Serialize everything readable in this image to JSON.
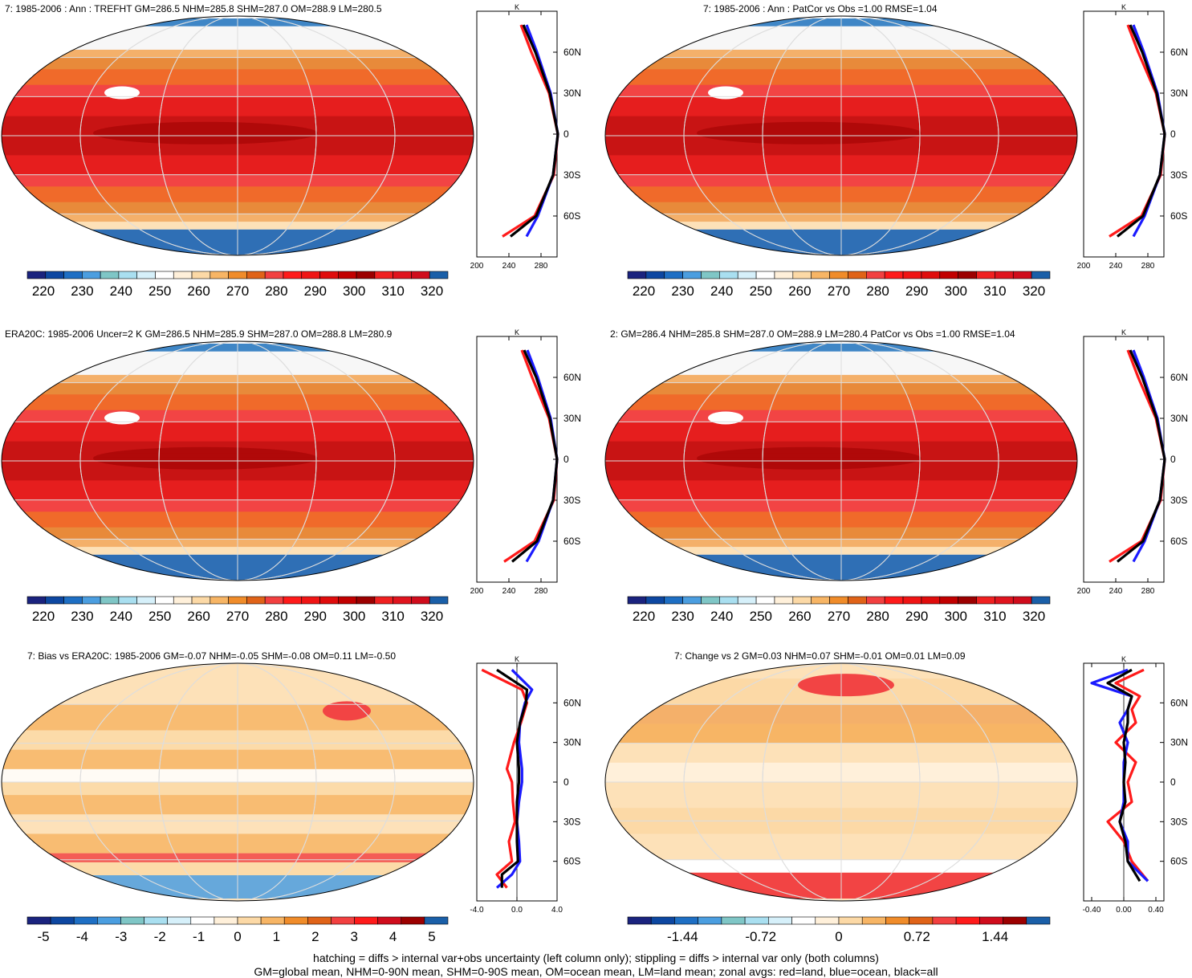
{
  "panels": [
    {
      "title": "7: 1985-2006 : Ann : TREFHT GM=286.5 NHM=285.8 SHM=287.0 OM=288.9 LM=280.5",
      "scale": "abs",
      "side": "left"
    },
    {
      "title": "7: 1985-2006 : Ann : PatCor vs Obs =1.00 RMSE=1.04",
      "scale": "abs",
      "side": "right"
    },
    {
      "title": "ERA20C: 1985-2006 Uncer=2 K GM=286.5 NHM=285.9 SHM=287.0 OM=288.8 LM=280.9",
      "scale": "abs",
      "side": "left"
    },
    {
      "title": "2: GM=286.4 NHM=285.8 SHM=287.0 OM=288.9 LM=280.4 PatCor vs Obs =1.00 RMSE=1.04",
      "scale": "abs",
      "side": "right"
    },
    {
      "title": "7: Bias vs ERA20C: 1985-2006 GM=-0.07 NHM=-0.05 SHM=-0.08 OM=0.11 LM=-0.50",
      "scale": "bias",
      "side": "left"
    },
    {
      "title": "7: Change vs 2 GM=0.03 NHM=0.07 SHM=-0.01 OM=0.01 LM=0.09",
      "scale": "change",
      "side": "right"
    }
  ],
  "colorbars": {
    "abs": {
      "labels": [
        "220",
        "230",
        "240",
        "250",
        "260",
        "270",
        "280",
        "290",
        "300",
        "310",
        "320"
      ]
    },
    "bias": {
      "labels": [
        "-5",
        "-4",
        "-3",
        "-2",
        "-1",
        "0",
        "1",
        "2",
        "3",
        "4",
        "5"
      ]
    },
    "change": {
      "labels": [
        "-1.44",
        "-0.72",
        "0",
        "0.72",
        "1.44"
      ]
    }
  },
  "zonal_axes": {
    "unit_label": "K",
    "lat_labels": [
      "60N",
      "30N",
      "0",
      "30S",
      "60S"
    ],
    "x_ticks_abs": [
      "200",
      "240",
      "280"
    ],
    "x_ticks_abs_right": [
      "200",
      "240",
      "280"
    ],
    "x_ticks_bias": [
      "-4.0",
      "0.0",
      "4.0"
    ],
    "x_ticks_change": [
      "-0.40",
      "0.00",
      "0.40"
    ]
  },
  "colors": {
    "land": "#ff1a1a",
    "ocean": "#1a1aff",
    "all": "#000000",
    "abs_palette": [
      "#1a237e",
      "#0d47a1",
      "#1e6fc4",
      "#4b9ee0",
      "#7fc6c6",
      "#a9dff0",
      "#d6f0fa",
      "#ffffff",
      "#fff0da",
      "#fcd9a6",
      "#f7b565",
      "#f08c2a",
      "#e06318",
      "#f24040",
      "#ff1a1a",
      "#f01414",
      "#e00c0c",
      "#c20000",
      "#9c0000",
      "#f02020",
      "#e0141e",
      "#d00c1c",
      "#1a5fa8"
    ],
    "diff_palette": [
      "#1a237e",
      "#0d47a1",
      "#1e6fc4",
      "#4b9ee0",
      "#7fc6c6",
      "#a9dff0",
      "#d6f0fa",
      "#ffffff",
      "#fff0da",
      "#fcd9a6",
      "#f7b565",
      "#f08c2a",
      "#e06318",
      "#f24040",
      "#ff1a1a",
      "#d00c1c",
      "#9c0000",
      "#1a5fa8"
    ]
  },
  "chart_data": [
    {
      "type": "heatmap",
      "title": "7: 1985-2006 : Ann : TREFHT GM=286.5 NHM=285.8 SHM=287.0 OM=288.9 LM=280.5",
      "units": "K",
      "zonal_mean": {
        "lat": [
          80,
          60,
          30,
          0,
          -30,
          -60,
          -75
        ],
        "land": [
          255,
          268,
          290,
          301,
          296,
          272,
          232
        ],
        "ocean": [
          262,
          275,
          292,
          301,
          295,
          276,
          262
        ],
        "all": [
          258,
          273,
          291,
          301,
          295,
          274,
          242
        ]
      }
    },
    {
      "type": "heatmap",
      "title": "7: 1985-2006 : Ann : PatCor vs Obs =1.00 RMSE=1.04",
      "units": "K",
      "zonal_mean": {
        "lat": [
          80,
          60,
          30,
          0,
          -30,
          -60,
          -75
        ],
        "land": [
          255,
          268,
          290,
          301,
          296,
          272,
          232
        ],
        "ocean": [
          262,
          275,
          292,
          301,
          295,
          276,
          262
        ],
        "all": [
          258,
          273,
          291,
          301,
          295,
          274,
          242
        ]
      }
    },
    {
      "type": "heatmap",
      "title": "ERA20C: 1985-2006 Uncer=2 K GM=286.5 NHM=285.9 SHM=287.0 OM=288.8 LM=280.9",
      "units": "K",
      "zonal_mean": {
        "lat": [
          80,
          60,
          30,
          0,
          -30,
          -60,
          -75
        ],
        "land": [
          256,
          269,
          290,
          300,
          296,
          272,
          234
        ],
        "ocean": [
          263,
          276,
          292,
          300,
          295,
          277,
          262
        ],
        "all": [
          259,
          274,
          291,
          300,
          295,
          275,
          244
        ]
      }
    },
    {
      "type": "heatmap",
      "title": "2: GM=286.4 NHM=285.8 SHM=287.0 OM=288.9 LM=280.4 PatCor vs Obs =1.00 RMSE=1.04",
      "units": "K",
      "zonal_mean": {
        "lat": [
          80,
          60,
          30,
          0,
          -30,
          -60,
          -75
        ],
        "land": [
          255,
          268,
          290,
          301,
          296,
          272,
          232
        ],
        "ocean": [
          262,
          275,
          292,
          301,
          295,
          276,
          262
        ],
        "all": [
          258,
          273,
          291,
          301,
          295,
          274,
          242
        ]
      }
    },
    {
      "type": "heatmap",
      "title": "7: Bias vs ERA20C: 1985-2006 GM=-0.07 NHM=-0.05 SHM=-0.08 OM=0.11 LM=-0.50",
      "units": "K",
      "zonal_mean": {
        "lat": [
          85,
          70,
          60,
          45,
          30,
          10,
          0,
          -15,
          -30,
          -45,
          -60,
          -70,
          -80
        ],
        "land": [
          -3.5,
          0.5,
          1.0,
          0.4,
          -0.3,
          -1.0,
          -0.5,
          -0.4,
          -0.2,
          -0.8,
          -0.5,
          -2.0,
          -1.0
        ],
        "ocean": [
          -0.5,
          1.5,
          0.8,
          0.3,
          0.2,
          0.5,
          0.5,
          0.2,
          0.0,
          0.2,
          0.3,
          -0.5,
          -2.0
        ],
        "all": [
          -2.0,
          1.0,
          0.9,
          0.3,
          0.0,
          0.2,
          0.2,
          0.0,
          0.0,
          0.0,
          0.1,
          -1.5,
          -1.5
        ]
      }
    },
    {
      "type": "heatmap",
      "title": "7: Change vs 2 GM=0.03 NHM=0.07 SHM=-0.01 OM=0.01 LM=0.09",
      "units": "K",
      "zonal_mean": {
        "lat": [
          85,
          75,
          65,
          55,
          45,
          30,
          15,
          0,
          -15,
          -30,
          -45,
          -60,
          -75
        ],
        "land": [
          0.25,
          -0.1,
          0.2,
          0.1,
          0.15,
          -0.1,
          0.15,
          0.05,
          0.1,
          -0.2,
          0.0,
          0.1,
          0.3
        ],
        "ocean": [
          0.05,
          -0.4,
          0.1,
          0.05,
          -0.05,
          0.05,
          0.0,
          0.0,
          0.0,
          -0.05,
          0.05,
          0.05,
          0.3
        ],
        "all": [
          0.1,
          -0.2,
          0.1,
          0.05,
          0.05,
          0.0,
          0.02,
          0.0,
          0.02,
          -0.05,
          0.02,
          0.05,
          0.2
        ]
      }
    }
  ],
  "footer": {
    "line1": "hatching = diffs > internal var+obs uncertainty (left column only); stippling = diffs > internal var only (both columns)",
    "line2": "GM=global mean, NHM=0-90N mean, SHM=0-90S mean, OM=ocean mean, LM=land mean; zonal avgs: red=land, blue=ocean, black=all"
  }
}
